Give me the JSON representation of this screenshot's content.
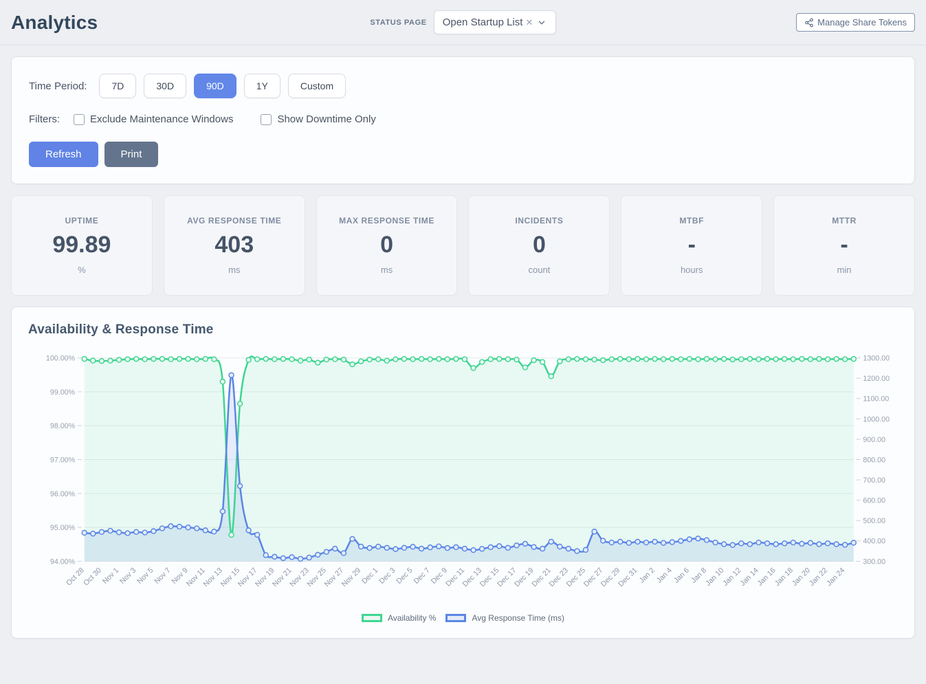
{
  "header": {
    "title": "Analytics",
    "status_page_label": "STATUS PAGE",
    "status_page_value": "Open Startup List",
    "manage_tokens_label": "Manage Share Tokens"
  },
  "filter_panel": {
    "time_period_label": "Time Period:",
    "periods": [
      {
        "label": "7D",
        "active": false
      },
      {
        "label": "30D",
        "active": false
      },
      {
        "label": "90D",
        "active": true
      },
      {
        "label": "1Y",
        "active": false
      },
      {
        "label": "Custom",
        "active": false
      }
    ],
    "filters_label": "Filters:",
    "checkboxes": [
      {
        "label": "Exclude Maintenance Windows",
        "checked": false
      },
      {
        "label": "Show Downtime Only",
        "checked": false
      }
    ],
    "refresh_label": "Refresh",
    "print_label": "Print"
  },
  "stats": {
    "cards": [
      {
        "label": "UPTIME",
        "value": "99.89",
        "unit": "%"
      },
      {
        "label": "AVG RESPONSE TIME",
        "value": "403",
        "unit": "ms"
      },
      {
        "label": "MAX RESPONSE TIME",
        "value": "0",
        "unit": "ms"
      },
      {
        "label": "INCIDENTS",
        "value": "0",
        "unit": "count"
      },
      {
        "label": "MTBF",
        "value": "-",
        "unit": "hours"
      },
      {
        "label": "MTTR",
        "value": "-",
        "unit": "min"
      }
    ]
  },
  "chart_data": {
    "type": "line",
    "title": "Availability & Response Time",
    "legend_position": "bottom",
    "grid": true,
    "left_axis": {
      "min": 94,
      "max": 100,
      "ticks": [
        "100.00%",
        "99.00%",
        "98.00%",
        "97.00%",
        "96.00%",
        "95.00%",
        "94.00%"
      ]
    },
    "right_axis": {
      "min": 300,
      "max": 1300,
      "ticks": [
        "1300.00",
        "1200.00",
        "1100.00",
        "1000.00",
        "900.00",
        "800.00",
        "700.00",
        "600.00",
        "500.00",
        "400.00",
        "300.00"
      ]
    },
    "x_tick_labels": [
      "Oct 28",
      "Oct 30",
      "Nov 1",
      "Nov 3",
      "Nov 5",
      "Nov 7",
      "Nov 9",
      "Nov 11",
      "Nov 13",
      "Nov 15",
      "Nov 17",
      "Nov 19",
      "Nov 21",
      "Nov 23",
      "Nov 25",
      "Nov 27",
      "Nov 29",
      "Dec 1",
      "Dec 3",
      "Dec 5",
      "Dec 7",
      "Dec 9",
      "Dec 11",
      "Dec 13",
      "Dec 15",
      "Dec 17",
      "Dec 19",
      "Dec 21",
      "Dec 23",
      "Dec 25",
      "Dec 27",
      "Dec 29",
      "Dec 31",
      "Jan 2",
      "Jan 4",
      "Jan 6",
      "Jan 8",
      "Jan 10",
      "Jan 12",
      "Jan 14",
      "Jan 16",
      "Jan 18",
      "Jan 20",
      "Jan 22",
      "Jan 24"
    ],
    "x_tick_every": 2,
    "series": [
      {
        "name": "Availability %",
        "axis": "left",
        "color": "#3fd692",
        "area_fill": "rgba(63,214,146,0.10)",
        "marker_fill": "#e9f8f1",
        "values": [
          99.97,
          99.92,
          99.91,
          99.92,
          99.94,
          99.96,
          99.97,
          99.96,
          99.97,
          99.97,
          99.96,
          99.97,
          99.97,
          99.96,
          99.97,
          99.96,
          99.3,
          94.78,
          98.65,
          99.94,
          99.96,
          99.97,
          99.96,
          99.97,
          99.96,
          99.92,
          99.95,
          99.86,
          99.95,
          99.96,
          99.95,
          99.81,
          99.9,
          99.95,
          99.96,
          99.92,
          99.96,
          99.97,
          99.96,
          99.97,
          99.96,
          99.97,
          99.96,
          99.97,
          99.96,
          99.7,
          99.88,
          99.96,
          99.97,
          99.96,
          99.95,
          99.72,
          99.93,
          99.88,
          99.46,
          99.9,
          99.96,
          99.97,
          99.96,
          99.95,
          99.93,
          99.96,
          99.97,
          99.96,
          99.97,
          99.96,
          99.97,
          99.96,
          99.97,
          99.96,
          99.97,
          99.96,
          99.97,
          99.96,
          99.97,
          99.95,
          99.96,
          99.97,
          99.96,
          99.97,
          99.96,
          99.97,
          99.96,
          99.97,
          99.96,
          99.97,
          99.96,
          99.97,
          99.96,
          99.97
        ]
      },
      {
        "name": "Avg Response Time (ms)",
        "axis": "right",
        "color": "#5b87e5",
        "area_fill": "rgba(91,135,229,0.14)",
        "marker_fill": "#e4ebfa",
        "values": [
          440,
          436,
          444,
          450,
          442,
          438,
          444,
          441,
          448,
          462,
          472,
          470,
          466,
          462,
          452,
          446,
          545,
          1215,
          670,
          452,
          430,
          330,
          322,
          315,
          320,
          312,
          318,
          332,
          346,
          362,
          340,
          410,
          372,
          365,
          372,
          366,
          360,
          366,
          371,
          362,
          368,
          373,
          365,
          369,
          362,
          355,
          361,
          369,
          374,
          366,
          378,
          386,
          370,
          362,
          396,
          372,
          362,
          350,
          356,
          446,
          401,
          392,
          396,
          390,
          396,
          392,
          396,
          390,
          394,
          400,
          408,
          412,
          404,
          392,
          384,
          380,
          388,
          384,
          392,
          388,
          384,
          388,
          392,
          386,
          390,
          384,
          388,
          384,
          381,
          391
        ]
      }
    ]
  }
}
